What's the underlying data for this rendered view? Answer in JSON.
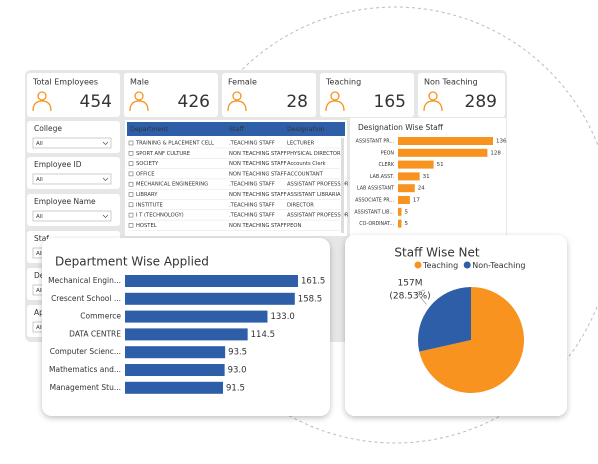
{
  "kpis": [
    {
      "label": "Total Employees",
      "value": 454
    },
    {
      "label": "Male",
      "value": 426
    },
    {
      "label": "Female",
      "value": 28
    },
    {
      "label": "Teaching",
      "value": 165
    },
    {
      "label": "Non Teaching",
      "value": 289
    }
  ],
  "filters": [
    {
      "label": "College",
      "value": "All"
    },
    {
      "label": "Employee ID",
      "value": "All"
    },
    {
      "label": "Employee Name",
      "value": "All"
    },
    {
      "label": "Staf",
      "value": "All"
    },
    {
      "label": "De",
      "value": "All"
    },
    {
      "label": "Ap",
      "value": "All"
    }
  ],
  "table": {
    "columns": [
      "Department",
      "Staff",
      "Designation"
    ],
    "rows": [
      [
        "TRAINING & PLACEMENT CELL",
        ".TEACHING STAFF",
        "LECTURER"
      ],
      [
        "SPORT ANF CULTURE",
        "NON TEACHING STAFF",
        "PHYSICAL DIRECTOR"
      ],
      [
        "SOCIETY",
        "NON TEACHING STAFF",
        "Accounts Clerk"
      ],
      [
        "OFFICE",
        "NON TEACHING STAFF",
        "ACCOUNTANT"
      ],
      [
        "MECHANICAL ENGINEERING",
        ".TEACHING STAFF",
        "ASSISTANT PROFESSOR"
      ],
      [
        "LIBRARY",
        "NON TEACHING STAFF",
        "ASSISTANT LIBRARIAN"
      ],
      [
        "INSTITUTE",
        ".TEACHING STAFF",
        "DIRECTOR"
      ],
      [
        "I T (TECHNOLOGY)",
        ".TEACHING STAFF",
        "ASSISTANT PROFESSOR"
      ],
      [
        "HOSTEL",
        "NON TEACHING STAFF",
        "PEON"
      ]
    ]
  },
  "chart_data": [
    {
      "type": "hbar",
      "title": "Designation Wise Staff",
      "categories": [
        "ASSISTANT PR...",
        "PEON",
        "CLERK",
        "LAB.ASST.",
        "LAB ASSISTANT",
        "ASSOCIATE PR...",
        "ASSISTANT LIB...",
        "CO-ORDINAT..."
      ],
      "values": [
        136,
        128,
        51,
        31,
        24,
        17,
        5,
        5
      ],
      "color": "#f7931e"
    },
    {
      "type": "hbar",
      "title": "Department Wise Applied",
      "categories": [
        "Mechanical Engin...",
        "Crescent School ...",
        "Commerce",
        "DATA CENTRE",
        "Computer Scienc...",
        "Mathematics and...",
        "Management Stu..."
      ],
      "values": [
        161.5,
        158.5,
        133.0,
        114.5,
        93.5,
        93.0,
        91.5
      ],
      "value_labels": [
        "161.5",
        "158.5",
        "133.0",
        "114.5",
        "93.5",
        "93.0",
        "91.5"
      ],
      "color": "#2e5ea8"
    },
    {
      "type": "pie",
      "title": "Staff Wise Net",
      "categories": [
        "Teaching",
        "Non-Teaching"
      ],
      "values": [
        393300000,
        157000000
      ],
      "value_labels": [
        null,
        "157M"
      ],
      "percent_labels": [
        null,
        "(28.53%)"
      ],
      "colors": [
        "#f7931e",
        "#2e5ea8"
      ]
    }
  ]
}
